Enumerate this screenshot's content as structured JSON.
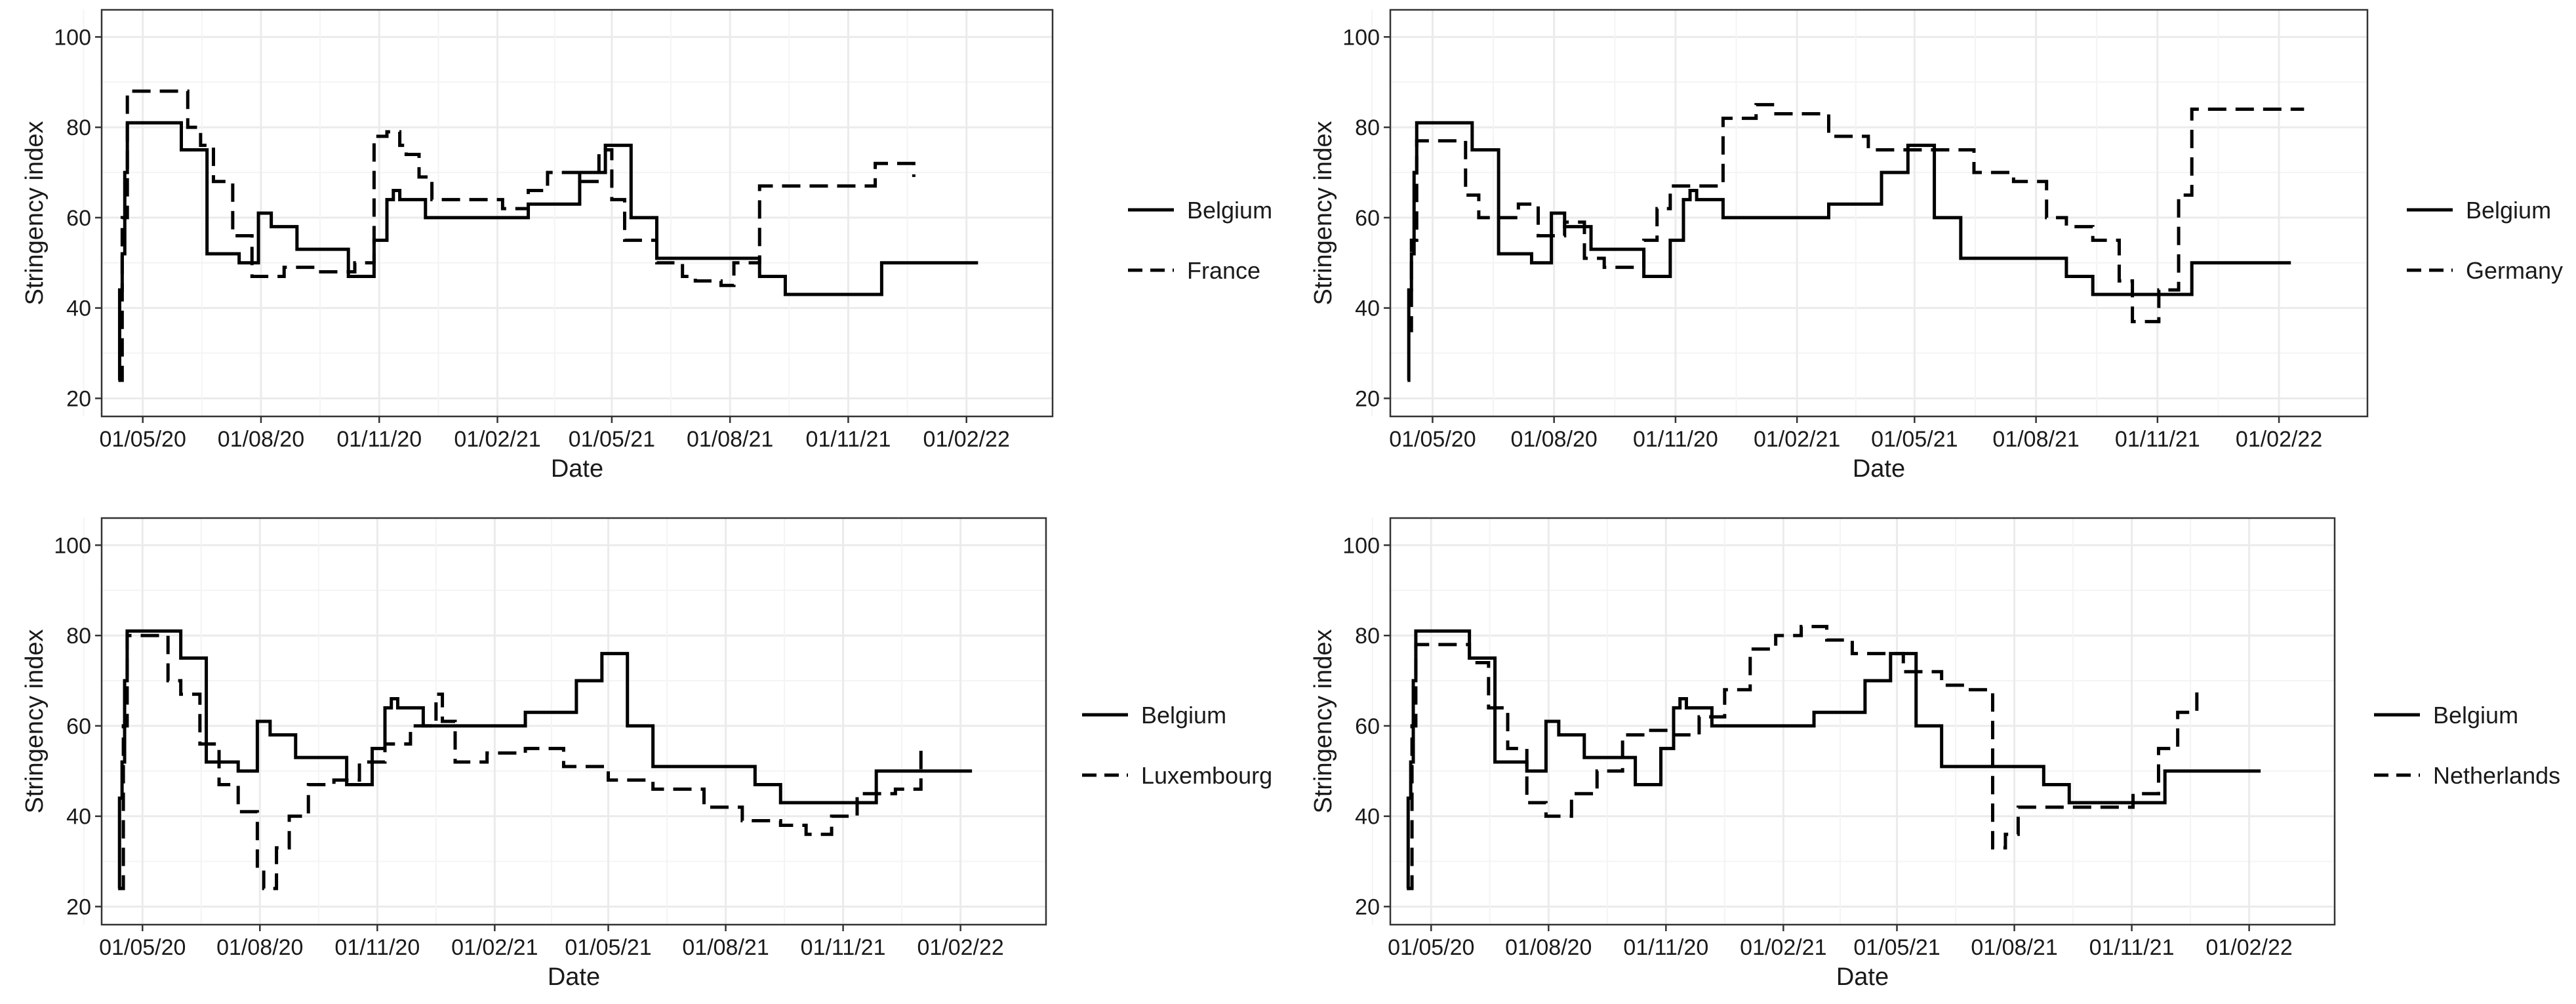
{
  "chart_data": [
    {
      "type": "line",
      "xlabel": "Date",
      "ylabel": "Stringency index",
      "ylim": [
        20,
        100
      ],
      "yticks": [
        20,
        40,
        60,
        80,
        100
      ],
      "xlim": [
        -32,
        708
      ],
      "xticks": [
        {
          "value": 0,
          "label": "01/05/20"
        },
        {
          "value": 92,
          "label": "01/08/20"
        },
        {
          "value": 184,
          "label": "01/11/20"
        },
        {
          "value": 276,
          "label": "01/02/21"
        },
        {
          "value": 365,
          "label": "01/05/21"
        },
        {
          "value": 457,
          "label": "01/08/21"
        },
        {
          "value": 549,
          "label": "01/11/21"
        },
        {
          "value": 641,
          "label": "01/02/22"
        }
      ],
      "x_units": "days since 01/05/20",
      "legend": "right",
      "series": [
        {
          "name": "Belgium",
          "style": "solid",
          "x": [
            -19,
            -18,
            -16,
            -14,
            -12,
            0,
            20,
            30,
            40,
            50,
            75,
            90,
            95,
            100,
            120,
            150,
            160,
            165,
            180,
            190,
            195,
            200,
            220,
            230,
            260,
            300,
            330,
            340,
            360,
            363,
            380,
            400,
            450,
            480,
            500,
            555,
            575,
            650
          ],
          "y": [
            24,
            44,
            52,
            70,
            81,
            81,
            81,
            75,
            75,
            52,
            50,
            61,
            61,
            58,
            53,
            53,
            47,
            47,
            55,
            64,
            66,
            64,
            60,
            60,
            60,
            63,
            63,
            70,
            76,
            76,
            60,
            51,
            51,
            47,
            43,
            43,
            50,
            50
          ]
        },
        {
          "name": "France",
          "style": "dashed",
          "x": [
            -19,
            -16,
            -12,
            0,
            35,
            45,
            55,
            70,
            85,
            110,
            135,
            150,
            165,
            180,
            190,
            200,
            205,
            215,
            225,
            250,
            280,
            300,
            315,
            325,
            340,
            355,
            365,
            375,
            400,
            420,
            430,
            450,
            460,
            480,
            550,
            570,
            590,
            600
          ],
          "y": [
            24,
            60,
            88,
            88,
            80,
            76,
            68,
            56,
            47,
            49,
            48,
            48,
            50,
            78,
            79,
            76,
            74,
            69,
            64,
            64,
            62,
            66,
            70,
            70,
            68,
            75,
            64,
            55,
            50,
            47,
            46,
            45,
            50,
            67,
            67,
            72,
            72,
            69
          ]
        },
        {
          "name": "Germany",
          "style": "dashed",
          "x": [
            -19,
            -16,
            -12,
            0,
            15,
            25,
            35,
            50,
            65,
            80,
            100,
            115,
            130,
            150,
            160,
            170,
            180,
            200,
            220,
            245,
            260,
            285,
            300,
            330,
            360,
            380,
            410,
            440,
            465,
            480,
            500,
            520,
            530,
            550,
            565,
            575,
            660
          ],
          "y": [
            35,
            55,
            77,
            77,
            77,
            65,
            60,
            60,
            63,
            56,
            59,
            51,
            49,
            49,
            55,
            62,
            67,
            67,
            82,
            85,
            83,
            83,
            78,
            75,
            75,
            75,
            70,
            68,
            60,
            58,
            55,
            46,
            37,
            44,
            65,
            84,
            84
          ]
        },
        {
          "name": "Luxembourg",
          "style": "dashed",
          "x": [
            -19,
            -15,
            -12,
            0,
            10,
            20,
            30,
            45,
            60,
            75,
            90,
            95,
            105,
            115,
            130,
            150,
            170,
            190,
            210,
            230,
            235,
            245,
            270,
            300,
            330,
            365,
            400,
            440,
            470,
            500,
            520,
            540,
            560,
            590,
            610
          ],
          "y": [
            24,
            60,
            80,
            80,
            80,
            70,
            67,
            56,
            47,
            41,
            28,
            24,
            33,
            40,
            47,
            48,
            52,
            56,
            60,
            67,
            61,
            52,
            54,
            55,
            51,
            48,
            46,
            42,
            39,
            38,
            36,
            40,
            45,
            46,
            55
          ]
        },
        {
          "name": "Netherlands",
          "style": "dashed",
          "x": [
            -19,
            -15,
            -12,
            0,
            15,
            30,
            45,
            60,
            75,
            90,
            110,
            130,
            150,
            170,
            190,
            210,
            230,
            250,
            270,
            290,
            310,
            330,
            350,
            370,
            400,
            420,
            440,
            450,
            460,
            490,
            520,
            550,
            570,
            585,
            600
          ],
          "y": [
            24,
            60,
            78,
            78,
            78,
            74,
            64,
            55,
            43,
            40,
            45,
            50,
            58,
            59,
            58,
            62,
            68,
            77,
            80,
            82,
            79,
            76,
            76,
            72,
            69,
            68,
            33,
            36,
            42,
            42,
            42,
            45,
            55,
            63,
            68
          ]
        }
      ],
      "panels": [
        {
          "series": [
            "Belgium",
            "France"
          ]
        },
        {
          "series": [
            "Belgium",
            "Germany"
          ]
        },
        {
          "series": [
            "Belgium",
            "Luxembourg"
          ]
        },
        {
          "series": [
            "Belgium",
            "Netherlands"
          ]
        }
      ]
    }
  ]
}
